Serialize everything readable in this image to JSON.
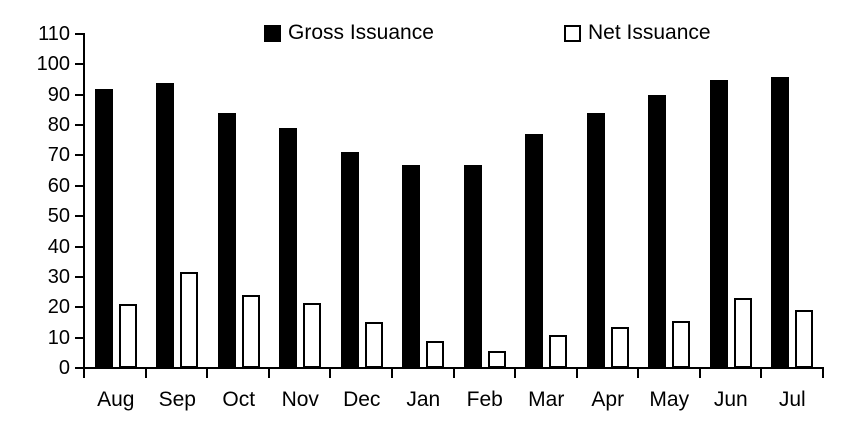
{
  "chart_data": {
    "type": "bar",
    "title": "",
    "xlabel": "",
    "ylabel": "",
    "categories": [
      "Aug",
      "Sep",
      "Oct",
      "Nov",
      "Dec",
      "Jan",
      "Feb",
      "Mar",
      "Apr",
      "May",
      "Jun",
      "Jul"
    ],
    "series": [
      {
        "name": "Gross Issuance",
        "style": "solid-black",
        "values": [
          92,
          94,
          84,
          79,
          71,
          67,
          67,
          77,
          84,
          90,
          95,
          96
        ]
      },
      {
        "name": "Net Issuance",
        "style": "white-black-outline",
        "values": [
          21,
          31.5,
          24,
          21.5,
          15,
          9,
          5.5,
          11,
          13.5,
          15.5,
          23,
          19
        ]
      }
    ],
    "ylim": [
      0,
      110
    ],
    "yticks": [
      0,
      10,
      20,
      30,
      40,
      50,
      60,
      70,
      80,
      90,
      100,
      110
    ],
    "grid": false,
    "legend_position": "top"
  },
  "legend": {
    "items": [
      {
        "label": "Gross Issuance",
        "swatch": "black-filled-square"
      },
      {
        "label": "Net Issuance",
        "swatch": "white-outlined-square"
      }
    ]
  },
  "colors": {
    "background": "#ffffff",
    "bar_fill": "#000000",
    "bar_outline": "#000000",
    "text": "#000000",
    "axis": "#000000"
  }
}
